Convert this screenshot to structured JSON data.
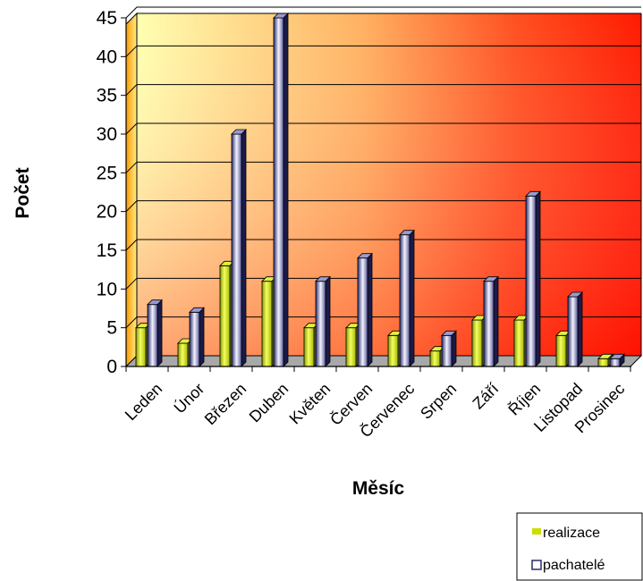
{
  "chart_data": {
    "type": "bar",
    "title": "",
    "xlabel": "Měsíc",
    "ylabel": "Počet",
    "ylim": [
      0,
      45
    ],
    "yticks": [
      0,
      5,
      10,
      15,
      20,
      25,
      30,
      35,
      40,
      45
    ],
    "grid": true,
    "legend_position": "bottom-right",
    "categories": [
      "Leden",
      "Únor",
      "Březen",
      "Duben",
      "Květen",
      "Červen",
      "Červenec",
      "Srpen",
      "Září",
      "Říjen",
      "Listopad",
      "Prosinec"
    ],
    "series": [
      {
        "name": "realizace",
        "color": "#ccdd00",
        "values": [
          5,
          3,
          13,
          11,
          5,
          5,
          4,
          2,
          6,
          6,
          4,
          1
        ]
      },
      {
        "name": "pachatelé",
        "color": "#2b2b6b",
        "values": [
          8,
          7,
          30,
          45,
          11,
          14,
          17,
          4,
          11,
          22,
          9,
          1
        ]
      }
    ],
    "background_gradient": [
      "#ffffb0",
      "#ff2a00"
    ]
  }
}
